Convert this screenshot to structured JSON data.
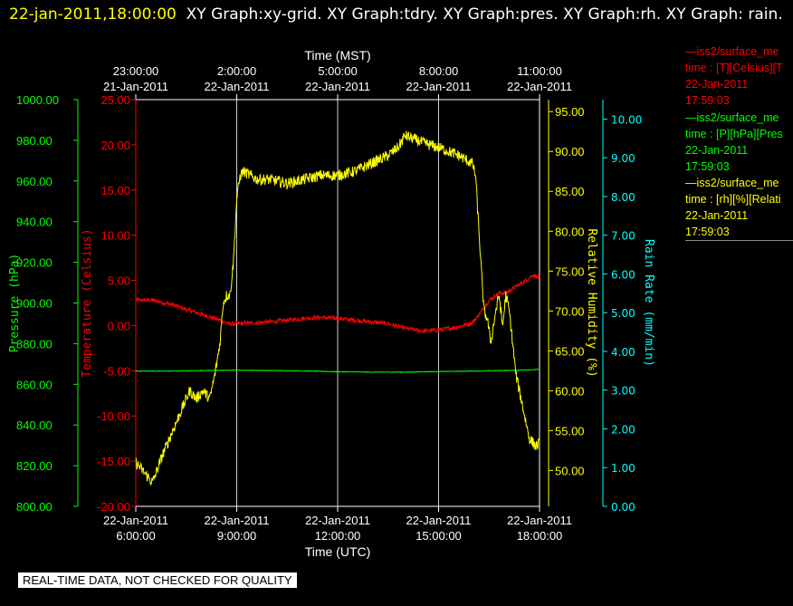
{
  "header": {
    "timestamp": "22-jan-2011,18:00:00",
    "titles": "XY Graph:xy-grid.  XY Graph:tdry.  XY Graph:pres.  XY Graph:rh.  XY Graph: rain."
  },
  "legend": [
    {
      "line1": "—iss2/surface_me",
      "line2": "time : [T][Celsius][T",
      "line3": "22-Jan-2011",
      "line4": "17:59:03",
      "color": "#ff0000"
    },
    {
      "line1": "—iss2/surface_me",
      "line2": "time : [P][hPa][Pres",
      "line3": "22-Jan-2011",
      "line4": "17:59:03",
      "color": "#00ff00"
    },
    {
      "line1": "—iss2/surface_me",
      "line2": "time : [rh][%][Relati",
      "line3": "22-Jan-2011",
      "line4": "17:59:03",
      "color": "#ffff00"
    }
  ],
  "notice": "REAL-TIME DATA, NOT CHECKED FOR QUALITY",
  "chart_data": {
    "type": "line",
    "grid": true,
    "xlim_utc_hours": [
      6,
      18
    ],
    "bottom_axis": {
      "label": "Time (UTC)",
      "ticks": [
        {
          "hour": 6,
          "date": "22-Jan-2011",
          "time": "6:00:00"
        },
        {
          "hour": 9,
          "date": "22-Jan-2011",
          "time": "9:00:00"
        },
        {
          "hour": 12,
          "date": "22-Jan-2011",
          "time": "12:00:00"
        },
        {
          "hour": 15,
          "date": "22-Jan-2011",
          "time": "15:00:00"
        },
        {
          "hour": 18,
          "date": "22-Jan-2011",
          "time": "18:00:00"
        }
      ]
    },
    "top_axis": {
      "label": "Time (MST)",
      "ticks": [
        {
          "hour": 6,
          "date": "21-Jan-2011",
          "time": "23:00:00"
        },
        {
          "hour": 9,
          "date": "22-Jan-2011",
          "time": "2:00:00"
        },
        {
          "hour": 12,
          "date": "22-Jan-2011",
          "time": "5:00:00"
        },
        {
          "hour": 15,
          "date": "22-Jan-2011",
          "time": "8:00:00"
        },
        {
          "hour": 18,
          "date": "22-Jan-2011",
          "time": "11:00:00"
        }
      ]
    },
    "axes": [
      {
        "id": "pres",
        "label": "Pressure (hPa)",
        "color": "#00ff00",
        "ylim": [
          800,
          1000
        ],
        "ticks": [
          "800.00",
          "820.00",
          "840.00",
          "860.00",
          "880.00",
          "900.00",
          "920.00",
          "940.00",
          "960.00",
          "980.00",
          "1000.00"
        ]
      },
      {
        "id": "tdry",
        "label": "Temperature (Celsius)",
        "color": "#ff0000",
        "ylim": [
          -20,
          25
        ],
        "ticks": [
          "-20.00",
          "-15.00",
          "-10.00",
          "-5.00",
          "0.00",
          "5.00",
          "10.00",
          "15.00",
          "20.00",
          "25.00"
        ]
      },
      {
        "id": "rh",
        "label": "Relative Humidity (%)",
        "color": "#ffff00",
        "ylim": [
          45.5,
          96.5
        ],
        "ticks": [
          "50.00",
          "55.00",
          "60.00",
          "65.00",
          "70.00",
          "75.00",
          "80.00",
          "85.00",
          "90.00",
          "95.00"
        ]
      },
      {
        "id": "rain",
        "label": "Rain Rate (mm/min)",
        "color": "#00ffff",
        "ylim": [
          0,
          10.5
        ],
        "ticks": [
          "0.00",
          "1.00",
          "2.00",
          "3.00",
          "4.00",
          "5.00",
          "6.00",
          "7.00",
          "8.00",
          "9.00",
          "10.00"
        ]
      }
    ],
    "series": [
      {
        "axis": "tdry",
        "color": "#ff0000",
        "noise": 0.25,
        "x": [
          6.0,
          6.5,
          7.0,
          7.5,
          8.0,
          8.5,
          8.75,
          9.0,
          9.5,
          10.0,
          10.5,
          11.0,
          11.5,
          12.0,
          12.5,
          13.0,
          13.5,
          14.0,
          14.5,
          15.0,
          15.5,
          16.0,
          16.2,
          16.5,
          16.8,
          17.0,
          17.3,
          17.6,
          17.8,
          18.0
        ],
        "y": [
          2.8,
          2.8,
          2.4,
          1.8,
          1.2,
          0.6,
          0.2,
          0.2,
          0.3,
          0.4,
          0.6,
          0.8,
          0.9,
          0.8,
          0.6,
          0.4,
          0.2,
          -0.3,
          -0.6,
          -0.5,
          -0.2,
          0.3,
          1.2,
          2.8,
          3.6,
          3.6,
          4.3,
          5.0,
          5.6,
          5.3
        ]
      },
      {
        "axis": "pres",
        "color": "#00ff00",
        "noise": 0.15,
        "x": [
          6.0,
          7.0,
          8.0,
          9.0,
          10.0,
          11.0,
          12.0,
          13.0,
          14.0,
          15.0,
          16.0,
          17.0,
          18.0
        ],
        "y": [
          866.5,
          866.5,
          866.8,
          867.0,
          866.8,
          866.6,
          866.2,
          866.0,
          866.0,
          866.3,
          866.5,
          866.8,
          867.3
        ]
      },
      {
        "axis": "rh",
        "color": "#ffff00",
        "noise": 0.7,
        "x": [
          6.0,
          6.3,
          6.5,
          6.8,
          7.0,
          7.2,
          7.4,
          7.6,
          7.8,
          8.0,
          8.2,
          8.35,
          8.5,
          8.6,
          8.7,
          8.8,
          8.9,
          9.0,
          9.1,
          9.2,
          9.4,
          9.6,
          10.0,
          10.5,
          11.0,
          11.5,
          12.0,
          12.5,
          13.0,
          13.5,
          13.8,
          14.0,
          14.3,
          14.6,
          15.0,
          15.3,
          15.6,
          16.0,
          16.1,
          16.2,
          16.3,
          16.35,
          16.45,
          16.55,
          16.7,
          16.8,
          16.9,
          17.0,
          17.1,
          17.3,
          17.5,
          17.7,
          17.9,
          18.0
        ],
        "y": [
          51.0,
          49.5,
          48.5,
          52.0,
          54.0,
          56.0,
          58.0,
          60.0,
          59.0,
          60.0,
          59.0,
          62.0,
          66.0,
          71.0,
          72.0,
          72.0,
          76.0,
          84.0,
          87.0,
          87.5,
          87.0,
          86.5,
          86.5,
          86.0,
          86.5,
          87.0,
          87.0,
          87.5,
          88.5,
          89.5,
          90.5,
          92.0,
          91.5,
          91.0,
          90.5,
          90.0,
          89.5,
          88.5,
          87.0,
          80.0,
          73.0,
          70.0,
          69.0,
          66.0,
          70.0,
          72.0,
          68.0,
          72.0,
          70.0,
          62.0,
          58.0,
          54.0,
          53.0,
          53.5
        ]
      }
    ]
  }
}
